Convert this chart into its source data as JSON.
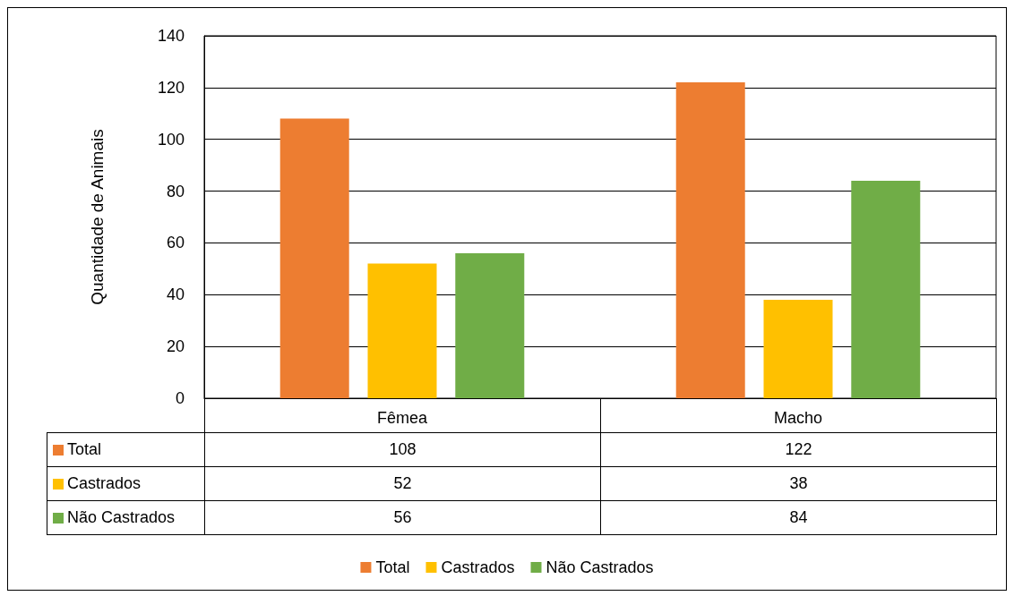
{
  "chart_data": {
    "type": "bar",
    "ylabel": "Quantidade de Animais",
    "categories": [
      "Fêmea",
      "Macho"
    ],
    "series": [
      {
        "name": "Total",
        "color": "#ed7d31",
        "values": [
          108,
          122
        ]
      },
      {
        "name": "Castrados",
        "color": "#ffc000",
        "values": [
          52,
          38
        ]
      },
      {
        "name": "Não Castrados",
        "color": "#70ad47",
        "values": [
          56,
          84
        ]
      }
    ],
    "ylim": [
      0,
      140
    ],
    "yticks": [
      0,
      20,
      40,
      60,
      80,
      100,
      120,
      140
    ],
    "grid": "y",
    "legend": "bottom",
    "data_labels": true
  }
}
